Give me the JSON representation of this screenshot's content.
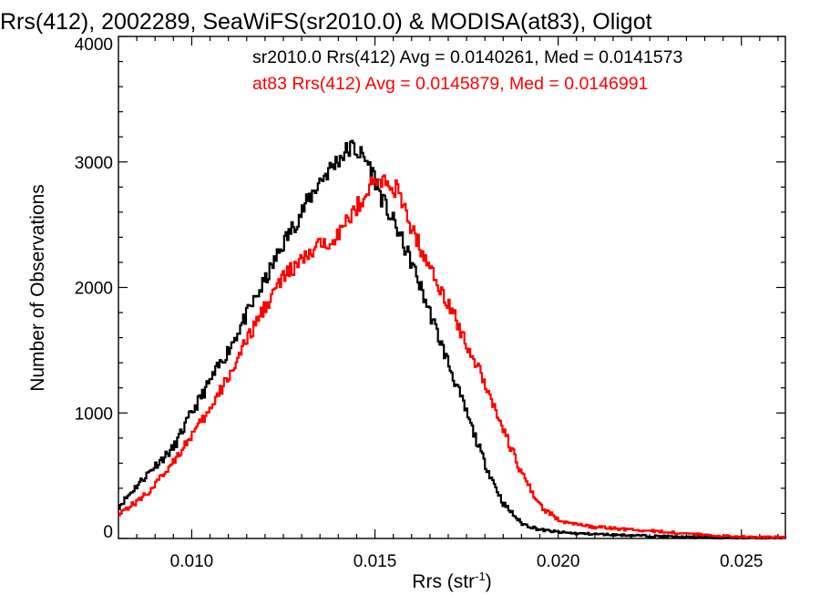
{
  "chart_data": {
    "type": "line",
    "title": "Rrs(412), 2002289, SeaWiFS(sr2010.0) & MODISA(at83), Oligot",
    "xlabel": "Rrs (str",
    "xlabel_sup": "-1",
    "xlabel_close": ")",
    "ylabel": "Number of Observations",
    "xlim": [
      0.008,
      0.0262
    ],
    "ylim": [
      0,
      4000
    ],
    "x_ticks": [
      0.01,
      0.015,
      0.02,
      0.025
    ],
    "x_tick_labels": [
      "0.010",
      "0.015",
      "0.020",
      "0.025"
    ],
    "y_ticks": [
      0,
      1000,
      2000,
      3000,
      4000
    ],
    "y_tick_labels": [
      "0",
      "1000",
      "2000",
      "3000",
      "4000"
    ],
    "grid": false,
    "legend_position": "top-right",
    "x": [
      0.008,
      0.0085,
      0.009,
      0.0095,
      0.01,
      0.0105,
      0.011,
      0.0115,
      0.012,
      0.0125,
      0.013,
      0.0135,
      0.014,
      0.0142,
      0.0144,
      0.0146,
      0.0148,
      0.015,
      0.0152,
      0.0154,
      0.0156,
      0.0158,
      0.016,
      0.0165,
      0.017,
      0.0175,
      0.018,
      0.0185,
      0.019,
      0.0195,
      0.02,
      0.0205,
      0.021,
      0.0215,
      0.022,
      0.0225,
      0.023,
      0.0235,
      0.024,
      0.0245,
      0.025,
      0.0255,
      0.026
    ],
    "series": [
      {
        "name": "sr2010.0",
        "color": "#000000",
        "legend": "sr2010.0 Rrs(412) Avg = 0.0140261, Med = 0.0141573",
        "values": [
          250,
          420,
          580,
          720,
          1000,
          1250,
          1500,
          1780,
          2050,
          2350,
          2600,
          2850,
          3020,
          3080,
          3120,
          3060,
          3000,
          2870,
          2700,
          2580,
          2470,
          2330,
          2200,
          1800,
          1400,
          1000,
          600,
          280,
          120,
          70,
          50,
          40,
          35,
          30,
          25,
          20,
          15,
          10,
          10,
          5,
          5,
          5,
          5
        ]
      },
      {
        "name": "at83",
        "color": "#ff0000",
        "legend": "at83 Rrs(412) Avg = 0.0145879, Med = 0.0146991",
        "values": [
          200,
          290,
          420,
          620,
          820,
          1020,
          1290,
          1570,
          1850,
          2080,
          2210,
          2330,
          2430,
          2500,
          2600,
          2680,
          2780,
          2840,
          2850,
          2820,
          2780,
          2620,
          2480,
          2150,
          1880,
          1550,
          1250,
          870,
          520,
          260,
          150,
          110,
          90,
          80,
          70,
          60,
          50,
          40,
          30,
          20,
          15,
          10,
          10
        ]
      }
    ]
  }
}
